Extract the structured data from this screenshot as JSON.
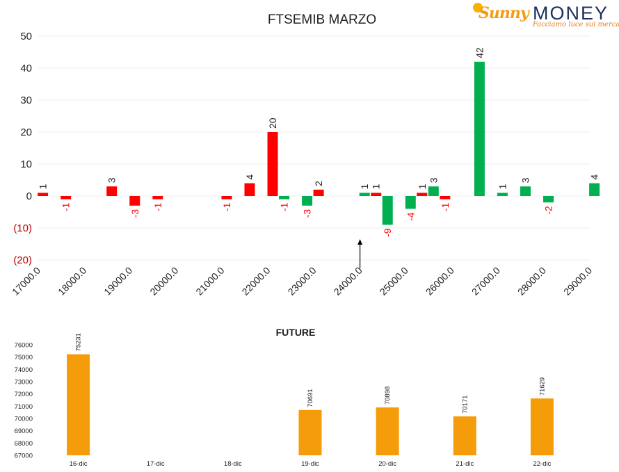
{
  "logo": {
    "brand_part1": "Sunny",
    "brand_part2": "MONEY",
    "tagline": "Facciamo luce sui mercati"
  },
  "colors": {
    "positive": "#00b050",
    "negative": "#ff0000",
    "future_bar": "#f59c0a",
    "negative_tick": "#c00000"
  },
  "chart_data": [
    {
      "type": "bar",
      "title": "FTSEMIB MARZO",
      "ylim": [
        -20,
        50
      ],
      "yticks": [
        50,
        40,
        30,
        20,
        10,
        0,
        -10,
        -20
      ],
      "ytick_labels": [
        "50",
        "40",
        "30",
        "20",
        "10",
        "0",
        "(10)",
        "(20)"
      ],
      "xlim": [
        17000,
        29000
      ],
      "xticks": [
        "17000.0",
        "18000.0",
        "19000.0",
        "20000.0",
        "21000.0",
        "22000.0",
        "23000.0",
        "24000.0",
        "25000.0",
        "26000.0",
        "27000.0",
        "28000.0",
        "29000.0"
      ],
      "grid": true,
      "legend": "none",
      "arrow_marker_x": 24000,
      "series": [
        {
          "color": "red",
          "points": [
            {
              "x": 17100,
              "y": 1,
              "label": "1"
            },
            {
              "x": 17600,
              "y": -1,
              "label": "-1"
            },
            {
              "x": 18600,
              "y": 3,
              "label": "3"
            },
            {
              "x": 19100,
              "y": -3,
              "label": "-3"
            },
            {
              "x": 19600,
              "y": -1,
              "label": "-1"
            },
            {
              "x": 21100,
              "y": -1,
              "label": "-1"
            },
            {
              "x": 21600,
              "y": 4,
              "label": "4"
            },
            {
              "x": 22100,
              "y": 20,
              "label": "20"
            },
            {
              "x": 23100,
              "y": 2,
              "label": "2"
            },
            {
              "x": 24350,
              "y": 1,
              "label": "1"
            },
            {
              "x": 25350,
              "y": 1,
              "label": "1"
            },
            {
              "x": 25850,
              "y": -1,
              "label": "-1"
            }
          ]
        },
        {
          "color": "green",
          "points": [
            {
              "x": 22350,
              "y": -1,
              "label": "-1"
            },
            {
              "x": 22850,
              "y": -3,
              "label": "-3"
            },
            {
              "x": 24100,
              "y": 1,
              "label": "1"
            },
            {
              "x": 24600,
              "y": -9,
              "label": "-9"
            },
            {
              "x": 25100,
              "y": -4,
              "label": "-4"
            },
            {
              "x": 25600,
              "y": 3,
              "label": "3"
            },
            {
              "x": 26600,
              "y": 42,
              "label": "42"
            },
            {
              "x": 27100,
              "y": 1,
              "label": "1"
            },
            {
              "x": 27600,
              "y": 3,
              "label": "3"
            },
            {
              "x": 28100,
              "y": -2,
              "label": "-2"
            },
            {
              "x": 29100,
              "y": 4,
              "label": "4"
            }
          ]
        }
      ]
    },
    {
      "type": "bar",
      "title": "FUTURE",
      "categories": [
        "16-dic",
        "17-dic",
        "18-dic",
        "19-dic",
        "20-dic",
        "21-dic",
        "22-dic"
      ],
      "values": [
        75231,
        null,
        null,
        70691,
        70898,
        70171,
        71629
      ],
      "ylim": [
        67000,
        76000
      ],
      "yticks": [
        76000,
        75000,
        74000,
        73000,
        72000,
        71000,
        70000,
        69000,
        68000,
        67000
      ],
      "grid": false,
      "legend": "none"
    }
  ]
}
